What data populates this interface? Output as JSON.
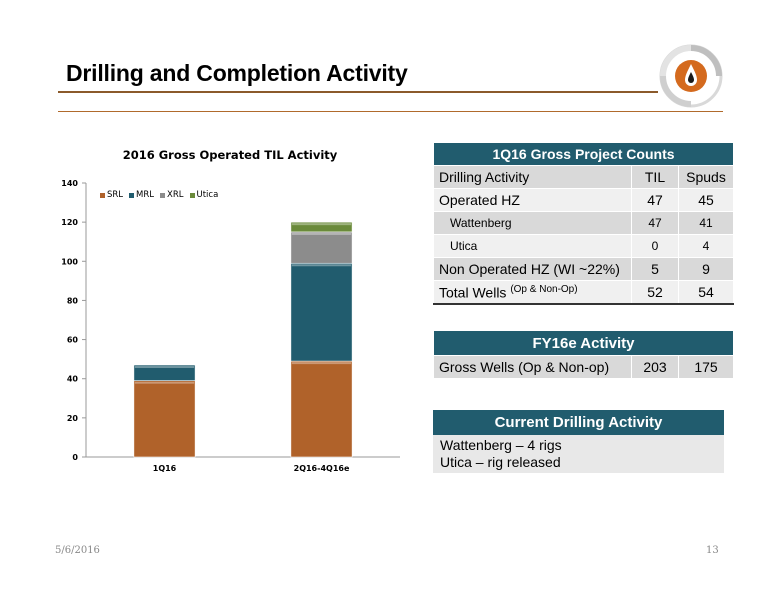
{
  "slide": {
    "title": "Drilling and Completion Activity",
    "date": "5/6/2016",
    "page": "13"
  },
  "chart_data": {
    "type": "bar",
    "stacked": true,
    "title": "2016 Gross Operated TIL Activity",
    "categories": [
      "1Q16",
      "2Q16-4Q16e"
    ],
    "series": [
      {
        "name": "SRL",
        "color": "#b0622a",
        "values": [
          39,
          49
        ]
      },
      {
        "name": "MRL",
        "color": "#215c6e",
        "values": [
          8,
          50
        ]
      },
      {
        "name": "XRL",
        "color": "#8c8c8c",
        "values": [
          0,
          16
        ]
      },
      {
        "name": "Utica",
        "color": "#6a8a3a",
        "values": [
          0,
          5
        ]
      }
    ],
    "ylim": [
      0,
      140
    ],
    "yticks": [
      0,
      20,
      40,
      60,
      80,
      100,
      120,
      140
    ],
    "legend": "top-left",
    "xlabel": "",
    "ylabel": ""
  },
  "project_counts": {
    "header": "1Q16 Gross Project Counts",
    "columns": [
      "Drilling Activity",
      "TIL",
      "Spuds"
    ],
    "rows": [
      {
        "label": "Operated HZ",
        "til": "47",
        "spuds": "45"
      },
      {
        "label": "Wattenberg",
        "til": "47",
        "spuds": "41"
      },
      {
        "label": "Utica",
        "til": "0",
        "spuds": "4"
      },
      {
        "label": "Non Operated HZ (WI ~22%)",
        "til": "5",
        "spuds": "9"
      },
      {
        "label": "Total Wells",
        "note": "(Op & Non-Op)",
        "til": "52",
        "spuds": "54"
      }
    ]
  },
  "fy16e": {
    "header": "FY16e Activity",
    "label": "Gross Wells (Op & Non-op)",
    "v1": "203",
    "v2": "175"
  },
  "current": {
    "header": "Current Drilling Activity",
    "lines": [
      "Wattenberg – 4 rigs",
      "Utica – rig released"
    ]
  }
}
